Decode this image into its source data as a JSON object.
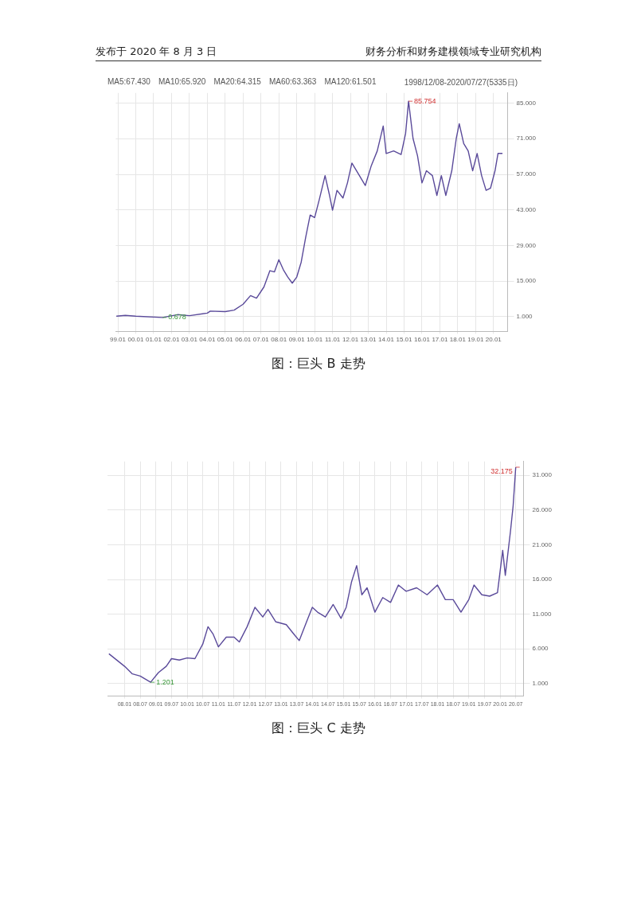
{
  "chart_data": [
    {
      "type": "line",
      "title": "图：巨头 B 走势",
      "annotations": [
        "发布于 2020 年 8 月 3 日",
        "财务分析和财务建模领域专业研究机构",
        "MA5:67.430",
        "MA10:65.920",
        "MA20:64.315",
        "MA60:63.363",
        "MA120:61.501",
        "1998/12/08-2020/07/27(5335日)",
        {
          "text": "85.754",
          "x": "2015-04",
          "y": 85.754
        },
        {
          "text": "0.678",
          "x": "2001-07",
          "y": 0.678
        }
      ],
      "xlim": [
        "1998-11-20",
        "2020-10-15"
      ],
      "xticks": [
        {
          "value": "1999-01",
          "label": "99.01"
        },
        {
          "value": "2000-01",
          "label": "00.01"
        },
        {
          "value": "2001-01",
          "label": "01.01"
        },
        {
          "value": "2002-01",
          "label": "02.01"
        },
        {
          "value": "2003-01",
          "label": "03.01"
        },
        {
          "value": "2004-01",
          "label": "04.01"
        },
        {
          "value": "2005-01",
          "label": "05.01"
        },
        {
          "value": "2006-01",
          "label": "06.01"
        },
        {
          "value": "2007-01",
          "label": "07.01"
        },
        {
          "value": "2008-01",
          "label": "08.01"
        },
        {
          "value": "2009-01",
          "label": "09.01"
        },
        {
          "value": "2010-01",
          "label": "10.01"
        },
        {
          "value": "2011-01",
          "label": "11.01"
        },
        {
          "value": "2012-01",
          "label": "12.01"
        },
        {
          "value": "2013-01",
          "label": "13.01"
        },
        {
          "value": "2014-01",
          "label": "14.01"
        },
        {
          "value": "2015-01",
          "label": "15.01"
        },
        {
          "value": "2016-01",
          "label": "16.01"
        },
        {
          "value": "2017-01",
          "label": "17.01"
        },
        {
          "value": "2018-01",
          "label": "18.01"
        },
        {
          "value": "2019-01",
          "label": "19.01"
        },
        {
          "value": "2020-01",
          "label": "20.01"
        }
      ],
      "ylim": [
        -4.8,
        89
      ],
      "yticks": [
        {
          "value": 1,
          "label": "1.000"
        },
        {
          "value": 15,
          "label": "15.000"
        },
        {
          "value": 29,
          "label": "29.000"
        },
        {
          "value": 43,
          "label": "43.000"
        },
        {
          "value": 57,
          "label": "57.000"
        },
        {
          "value": 71,
          "label": "71.000"
        },
        {
          "value": 85,
          "label": "85.000"
        }
      ],
      "grid": true,
      "legend": false,
      "marker": "none",
      "line_style": "solid",
      "series": [
        {
          "color": "#5a4a9a",
          "x": [
            "1998-12",
            "1999-06",
            "2000-01",
            "2001-07",
            "2002-05",
            "2003-01",
            "2004-01",
            "2004-03",
            "2005-01",
            "2005-07",
            "2006-01",
            "2006-06",
            "2006-10",
            "2007-03",
            "2007-07",
            "2007-10",
            "2008-01",
            "2008-04",
            "2008-07",
            "2008-10",
            "2009-01",
            "2009-04",
            "2009-07",
            "2009-10",
            "2010-01",
            "2010-04",
            "2010-08",
            "2010-11",
            "2011-01",
            "2011-04",
            "2011-08",
            "2011-11",
            "2012-02",
            "2012-06",
            "2012-11",
            "2013-03",
            "2013-07",
            "2013-11",
            "2014-01",
            "2014-06",
            "2014-11",
            "2015-02",
            "2015-04",
            "2015-07",
            "2015-10",
            "2016-01",
            "2016-04",
            "2016-08",
            "2016-11",
            "2017-02",
            "2017-05",
            "2017-09",
            "2017-12",
            "2018-02",
            "2018-05",
            "2018-08",
            "2018-11",
            "2019-02",
            "2019-05",
            "2019-08",
            "2019-11",
            "2020-02",
            "2020-04",
            "2020-07"
          ],
          "values": [
            1.2,
            1.5,
            1.2,
            0.678,
            1.8,
            1.4,
            2.4,
            3.2,
            3.0,
            3.6,
            5.9,
            9.3,
            8.3,
            12.7,
            19.1,
            18.6,
            23.4,
            19.5,
            16.6,
            14.2,
            16.6,
            22.5,
            32.2,
            41,
            40,
            46.8,
            56.5,
            48.7,
            42.9,
            50.7,
            47.7,
            53.6,
            61.4,
            57.5,
            52.6,
            60.4,
            66.2,
            76,
            65.2,
            66.2,
            64.8,
            73,
            85.754,
            71.1,
            64.3,
            53.6,
            58.4,
            56.5,
            48.7,
            56.5,
            48.7,
            58.4,
            71.1,
            76.9,
            69.1,
            66.2,
            58.4,
            65.2,
            56.5,
            50.7,
            51.6,
            58.4,
            65.2,
            65.2
          ]
        }
      ]
    },
    {
      "type": "line",
      "title": "图：巨头 C 走势",
      "annotations": [
        {
          "text": "32.175",
          "x": "2020-07",
          "y": 32.175
        },
        {
          "text": "1.201",
          "x": "2008-11",
          "y": 1.201
        }
      ],
      "xlim": [
        "2007-06-15",
        "2020-10-01"
      ],
      "xticks": [
        {
          "value": "2008-01",
          "label": "08.01"
        },
        {
          "value": "2008-07",
          "label": "08.07"
        },
        {
          "value": "2009-01",
          "label": "09.01"
        },
        {
          "value": "2009-07",
          "label": "09.07"
        },
        {
          "value": "2010-01",
          "label": "10.01"
        },
        {
          "value": "2010-07",
          "label": "10.07"
        },
        {
          "value": "2011-01",
          "label": "11.01"
        },
        {
          "value": "2011-07",
          "label": "11.07"
        },
        {
          "value": "2012-01",
          "label": "12.01"
        },
        {
          "value": "2012-07",
          "label": "12.07"
        },
        {
          "value": "2013-01",
          "label": "13.01"
        },
        {
          "value": "2013-07",
          "label": "13.07"
        },
        {
          "value": "2014-01",
          "label": "14.01"
        },
        {
          "value": "2014-07",
          "label": "14.07"
        },
        {
          "value": "2015-01",
          "label": "15.01"
        },
        {
          "value": "2015-07",
          "label": "15.07"
        },
        {
          "value": "2016-01",
          "label": "16.01"
        },
        {
          "value": "2016-07",
          "label": "16.07"
        },
        {
          "value": "2017-01",
          "label": "17.01"
        },
        {
          "value": "2017-07",
          "label": "17.07"
        },
        {
          "value": "2018-01",
          "label": "18.01"
        },
        {
          "value": "2018-07",
          "label": "18.07"
        },
        {
          "value": "2019-01",
          "label": "19.01"
        },
        {
          "value": "2019-07",
          "label": "19.07"
        },
        {
          "value": "2020-01",
          "label": "20.01"
        },
        {
          "value": "2020-07",
          "label": "20.07"
        }
      ],
      "ylim": [
        -0.8,
        33
      ],
      "yticks": [
        {
          "value": 1,
          "label": "1.000"
        },
        {
          "value": 6,
          "label": "6.000"
        },
        {
          "value": 11,
          "label": "11.000"
        },
        {
          "value": 16,
          "label": "16.000"
        },
        {
          "value": 21,
          "label": "21.000"
        },
        {
          "value": 26,
          "label": "26.000"
        },
        {
          "value": 31,
          "label": "31.000"
        }
      ],
      "grid": true,
      "legend": false,
      "marker": "none",
      "line_style": "solid",
      "series": [
        {
          "color": "#5a4a9a",
          "x": [
            "2007-07",
            "2007-09",
            "2008-01",
            "2008-04",
            "2008-07",
            "2008-11",
            "2009-02",
            "2009-05",
            "2009-07",
            "2009-10",
            "2010-01",
            "2010-04",
            "2010-07",
            "2010-09",
            "2010-11",
            "2011-01",
            "2011-04",
            "2011-07",
            "2011-09",
            "2011-12",
            "2012-03",
            "2012-06",
            "2012-08",
            "2012-11",
            "2013-03",
            "2013-06",
            "2013-08",
            "2013-11",
            "2014-01",
            "2014-03",
            "2014-06",
            "2014-09",
            "2014-12",
            "2015-02",
            "2015-04",
            "2015-06",
            "2015-08",
            "2015-10",
            "2016-01",
            "2016-04",
            "2016-07",
            "2016-10",
            "2017-01",
            "2017-05",
            "2017-09",
            "2018-01",
            "2018-04",
            "2018-07",
            "2018-10",
            "2019-01",
            "2019-03",
            "2019-06",
            "2019-09",
            "2019-12",
            "2020-02",
            "2020-03",
            "2020-05",
            "2020-06",
            "2020-07"
          ],
          "values": [
            5.3,
            4.7,
            3.5,
            2.4,
            2.1,
            1.201,
            2.6,
            3.5,
            4.6,
            4.4,
            4.7,
            4.6,
            6.7,
            9.2,
            8.1,
            6.3,
            7.7,
            7.7,
            7.0,
            9.2,
            12.0,
            10.6,
            11.7,
            9.9,
            9.5,
            8.1,
            7.2,
            10.1,
            12.0,
            11.3,
            10.6,
            12.4,
            10.4,
            12.0,
            15.6,
            18.0,
            13.8,
            14.8,
            11.3,
            13.4,
            12.7,
            15.2,
            14.3,
            14.8,
            13.8,
            15.2,
            13.1,
            13.1,
            11.3,
            13.1,
            15.2,
            13.8,
            13.6,
            14.1,
            20.2,
            16.6,
            23.0,
            26.6,
            32.175
          ]
        }
      ]
    }
  ]
}
